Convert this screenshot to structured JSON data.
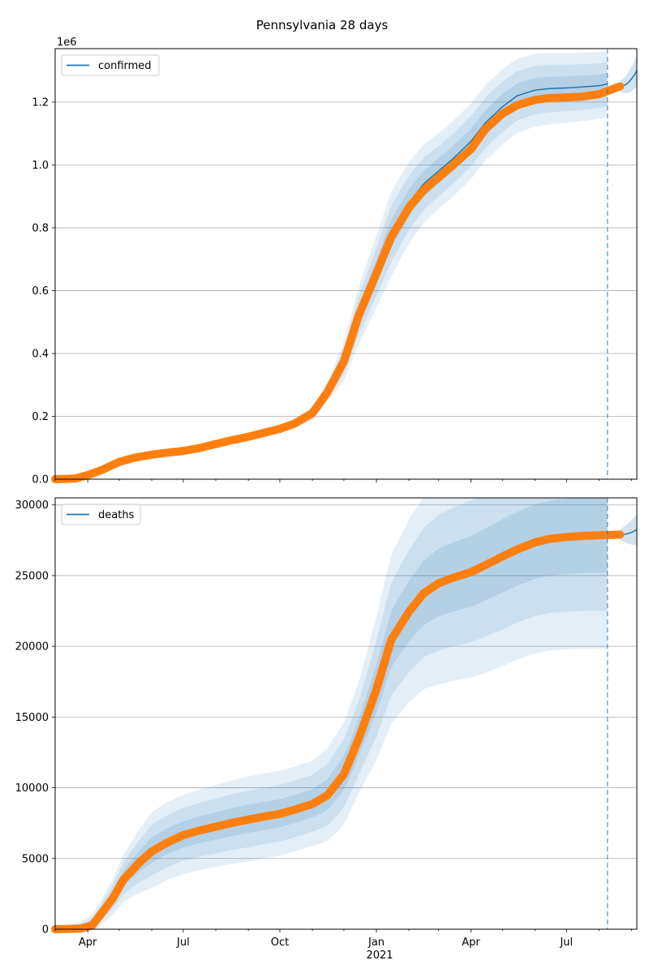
{
  "figure_title": "Pennsylvania 28 days",
  "colors": {
    "model": "#1f77b4",
    "observed": "#ff7f0e",
    "grid": "#b0b0b0"
  },
  "chart_data": [
    {
      "type": "line",
      "legend": "confirmed",
      "legend_placement": "top-left",
      "grid": "horizontal",
      "offset_label": "1e6",
      "xlim": [
        "2020-03-01",
        "2021-09-06"
      ],
      "ylim": [
        0,
        1.37
      ],
      "yticks": [
        0.0,
        0.2,
        0.4,
        0.6,
        0.8,
        1.0,
        1.2
      ],
      "ytick_labels": [
        "0.0",
        "0.2",
        "0.4",
        "0.6",
        "0.8",
        "1.0",
        "1.2"
      ],
      "forecast_start": "2021-08-09",
      "model_end": "2021-09-06",
      "model_end_value": 1.3,
      "observed_end": "2021-08-21",
      "model_curve": [
        [
          "2020-03-01",
          0.0
        ],
        [
          "2020-03-20",
          0.003
        ],
        [
          "2020-04-01",
          0.015
        ],
        [
          "2020-04-15",
          0.032
        ],
        [
          "2020-05-01",
          0.058
        ],
        [
          "2020-05-15",
          0.07
        ],
        [
          "2020-06-01",
          0.08
        ],
        [
          "2020-06-15",
          0.085
        ],
        [
          "2020-07-01",
          0.092
        ],
        [
          "2020-07-15",
          0.1
        ],
        [
          "2020-08-01",
          0.115
        ],
        [
          "2020-08-15",
          0.125
        ],
        [
          "2020-09-01",
          0.137
        ],
        [
          "2020-09-15",
          0.148
        ],
        [
          "2020-10-01",
          0.16
        ],
        [
          "2020-10-15",
          0.177
        ],
        [
          "2020-11-01",
          0.21
        ],
        [
          "2020-11-15",
          0.275
        ],
        [
          "2020-12-01",
          0.375
        ],
        [
          "2020-12-15",
          0.52
        ],
        [
          "2021-01-01",
          0.66
        ],
        [
          "2021-01-15",
          0.78
        ],
        [
          "2021-02-01",
          0.88
        ],
        [
          "2021-02-15",
          0.94
        ],
        [
          "2021-03-01",
          0.98
        ],
        [
          "2021-03-15",
          1.02
        ],
        [
          "2021-04-01",
          1.075
        ],
        [
          "2021-04-15",
          1.135
        ],
        [
          "2021-05-01",
          1.185
        ],
        [
          "2021-05-15",
          1.22
        ],
        [
          "2021-06-01",
          1.238
        ],
        [
          "2021-06-15",
          1.243
        ],
        [
          "2021-07-01",
          1.245
        ],
        [
          "2021-07-15",
          1.248
        ],
        [
          "2021-08-01",
          1.252
        ],
        [
          "2021-08-09",
          1.258
        ]
      ],
      "observed_curve": [
        [
          "2020-03-01",
          0.0
        ],
        [
          "2020-03-20",
          0.002
        ],
        [
          "2020-04-01",
          0.013
        ],
        [
          "2020-04-15",
          0.03
        ],
        [
          "2020-05-01",
          0.055
        ],
        [
          "2020-05-15",
          0.068
        ],
        [
          "2020-06-01",
          0.078
        ],
        [
          "2020-06-15",
          0.084
        ],
        [
          "2020-07-01",
          0.09
        ],
        [
          "2020-07-15",
          0.098
        ],
        [
          "2020-08-01",
          0.112
        ],
        [
          "2020-08-15",
          0.123
        ],
        [
          "2020-09-01",
          0.135
        ],
        [
          "2020-09-15",
          0.147
        ],
        [
          "2020-10-01",
          0.16
        ],
        [
          "2020-10-15",
          0.177
        ],
        [
          "2020-11-01",
          0.21
        ],
        [
          "2020-11-15",
          0.275
        ],
        [
          "2020-12-01",
          0.375
        ],
        [
          "2020-12-15",
          0.52
        ],
        [
          "2021-01-01",
          0.655
        ],
        [
          "2021-01-15",
          0.77
        ],
        [
          "2021-02-01",
          0.865
        ],
        [
          "2021-02-15",
          0.92
        ],
        [
          "2021-03-01",
          0.96
        ],
        [
          "2021-03-15",
          1.0
        ],
        [
          "2021-04-01",
          1.05
        ],
        [
          "2021-04-15",
          1.115
        ],
        [
          "2021-05-01",
          1.163
        ],
        [
          "2021-05-15",
          1.19
        ],
        [
          "2021-06-01",
          1.207
        ],
        [
          "2021-06-15",
          1.213
        ],
        [
          "2021-07-01",
          1.215
        ],
        [
          "2021-07-15",
          1.217
        ],
        [
          "2021-08-01",
          1.225
        ],
        [
          "2021-08-09",
          1.235
        ],
        [
          "2021-08-21",
          1.25
        ]
      ],
      "band_half_widths": [
        [
          "2020-03-01",
          0.0
        ],
        [
          "2020-10-01",
          0.002
        ],
        [
          "2020-11-15",
          0.01
        ],
        [
          "2020-12-15",
          0.03
        ],
        [
          "2021-01-15",
          0.045
        ],
        [
          "2021-03-01",
          0.04
        ],
        [
          "2021-05-01",
          0.04
        ],
        [
          "2021-08-09",
          0.035
        ]
      ]
    },
    {
      "type": "line",
      "legend": "deaths",
      "legend_placement": "top-left",
      "grid": "horizontal",
      "xlim": [
        "2020-03-01",
        "2021-09-06"
      ],
      "ylim": [
        0,
        30500
      ],
      "yticks": [
        0,
        5000,
        10000,
        15000,
        20000,
        25000,
        30000
      ],
      "ytick_labels": [
        "0",
        "5000",
        "10000",
        "15000",
        "20000",
        "25000",
        "30000"
      ],
      "xtick_labels": [
        "Apr",
        "Jul",
        "Oct",
        "Jan",
        "Apr",
        "Jul"
      ],
      "xtick_dates": [
        "2020-04-01",
        "2020-07-01",
        "2020-10-01",
        "2021-01-01",
        "2021-04-01",
        "2021-07-01"
      ],
      "year_label": "2021",
      "forecast_start": "2021-08-09",
      "model_end": "2021-09-06",
      "model_end_value": 28250,
      "observed_end": "2021-08-21",
      "model_curve": [
        [
          "2020-03-01",
          0
        ],
        [
          "2020-03-25",
          50
        ],
        [
          "2020-04-05",
          300
        ],
        [
          "2020-04-15",
          1300
        ],
        [
          "2020-04-25",
          2300
        ],
        [
          "2020-05-05",
          3600
        ],
        [
          "2020-05-20",
          4800
        ],
        [
          "2020-06-01",
          5600
        ],
        [
          "2020-06-15",
          6200
        ],
        [
          "2020-07-01",
          6700
        ],
        [
          "2020-07-15",
          7000
        ],
        [
          "2020-08-01",
          7300
        ],
        [
          "2020-08-15",
          7550
        ],
        [
          "2020-09-01",
          7800
        ],
        [
          "2020-09-15",
          8000
        ],
        [
          "2020-10-01",
          8200
        ],
        [
          "2020-10-15",
          8500
        ],
        [
          "2020-11-01",
          8900
        ],
        [
          "2020-11-15",
          9500
        ],
        [
          "2020-12-01",
          11000
        ],
        [
          "2020-12-15",
          13500
        ],
        [
          "2021-01-01",
          17000
        ],
        [
          "2021-01-15",
          20500
        ],
        [
          "2021-02-01",
          22500
        ],
        [
          "2021-02-15",
          23800
        ],
        [
          "2021-03-01",
          24500
        ],
        [
          "2021-03-15",
          24900
        ],
        [
          "2021-04-01",
          25300
        ],
        [
          "2021-04-15",
          25800
        ],
        [
          "2021-05-01",
          26400
        ],
        [
          "2021-05-15",
          26900
        ],
        [
          "2021-06-01",
          27400
        ],
        [
          "2021-06-15",
          27650
        ],
        [
          "2021-07-01",
          27780
        ],
        [
          "2021-07-15",
          27850
        ],
        [
          "2021-08-01",
          27900
        ],
        [
          "2021-08-09",
          27920
        ]
      ],
      "observed_curve": [
        [
          "2020-03-01",
          0
        ],
        [
          "2020-03-25",
          40
        ],
        [
          "2020-04-05",
          250
        ],
        [
          "2020-04-15",
          1200
        ],
        [
          "2020-04-25",
          2200
        ],
        [
          "2020-05-05",
          3500
        ],
        [
          "2020-05-20",
          4700
        ],
        [
          "2020-06-01",
          5500
        ],
        [
          "2020-06-15",
          6100
        ],
        [
          "2020-07-01",
          6650
        ],
        [
          "2020-07-15",
          6950
        ],
        [
          "2020-08-01",
          7250
        ],
        [
          "2020-08-15",
          7500
        ],
        [
          "2020-09-01",
          7750
        ],
        [
          "2020-09-15",
          7950
        ],
        [
          "2020-10-01",
          8150
        ],
        [
          "2020-10-15",
          8450
        ],
        [
          "2020-11-01",
          8850
        ],
        [
          "2020-11-15",
          9450
        ],
        [
          "2020-12-01",
          10950
        ],
        [
          "2020-12-15",
          13450
        ],
        [
          "2021-01-01",
          16950
        ],
        [
          "2021-01-15",
          20450
        ],
        [
          "2021-02-01",
          22450
        ],
        [
          "2021-02-15",
          23750
        ],
        [
          "2021-03-01",
          24450
        ],
        [
          "2021-03-15",
          24850
        ],
        [
          "2021-04-01",
          25250
        ],
        [
          "2021-04-15",
          25750
        ],
        [
          "2021-05-01",
          26350
        ],
        [
          "2021-05-15",
          26850
        ],
        [
          "2021-06-01",
          27350
        ],
        [
          "2021-06-15",
          27600
        ],
        [
          "2021-07-01",
          27730
        ],
        [
          "2021-07-15",
          27800
        ],
        [
          "2021-08-01",
          27850
        ],
        [
          "2021-08-09",
          27870
        ],
        [
          "2021-08-21",
          27900
        ]
      ],
      "band_half_widths": [
        [
          "2020-03-01",
          0
        ],
        [
          "2020-04-15",
          300
        ],
        [
          "2020-06-01",
          900
        ],
        [
          "2020-09-01",
          1000
        ],
        [
          "2020-11-01",
          1000
        ],
        [
          "2020-12-15",
          1300
        ],
        [
          "2021-01-15",
          2000
        ],
        [
          "2021-03-01",
          2400
        ],
        [
          "2021-05-01",
          2600
        ],
        [
          "2021-08-09",
          2700
        ]
      ]
    }
  ]
}
